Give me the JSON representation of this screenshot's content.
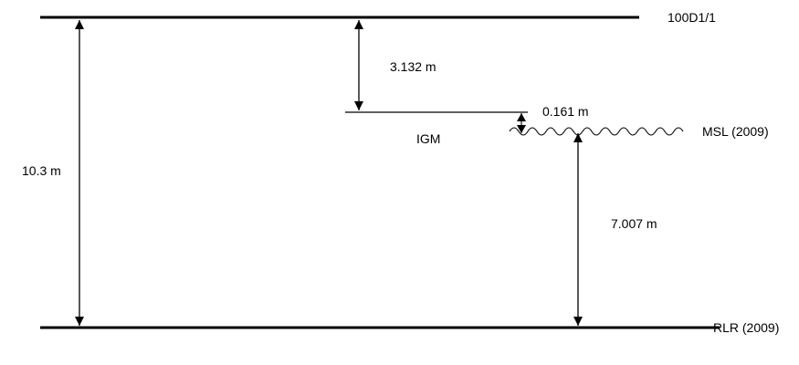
{
  "labels": {
    "top_datum": "100D1/1",
    "bottom_datum": "RLR (2009)",
    "msl": "MSL (2009)",
    "igm": "IGM"
  },
  "measurements": {
    "total": "10.3 m",
    "top_to_igm": "3.132 m",
    "igm_to_msl": "0.161 m",
    "msl_to_rlr": "7.007 m"
  },
  "colors": {
    "line": "#000000",
    "background": "#ffffff"
  }
}
